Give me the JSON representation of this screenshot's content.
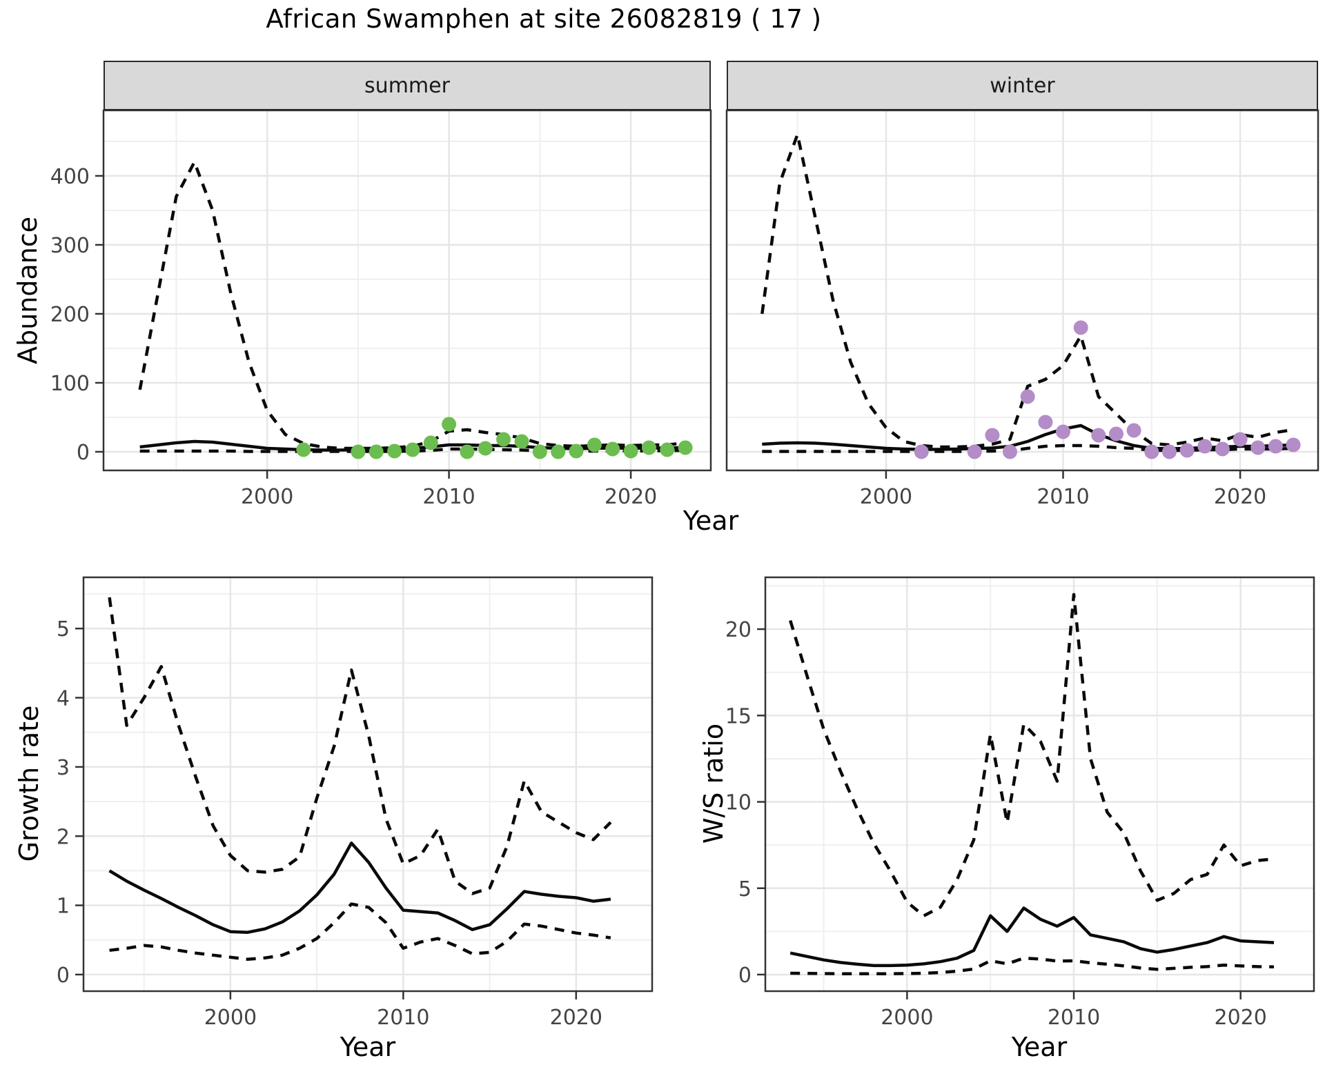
{
  "title": "African Swamphen at site 26082819 ( 17 )",
  "facets": {
    "summer": "summer",
    "winter": "winter"
  },
  "axis_titles": {
    "abundance": "Abundance",
    "year": "Year",
    "growth_rate": "Growth rate",
    "ws_ratio": "W/S ratio"
  },
  "colors": {
    "summer_points": "#6cbd4f",
    "winter_points": "#b48cc8",
    "fit_line": "#0a0a0a",
    "ci_line": "#0a0a0a",
    "strip_fill": "#d9d9d9",
    "panel_border": "#333333",
    "grid_major": "#e6e6e6",
    "grid_minor": "#efefef",
    "tick_label": "#444444"
  },
  "chart_data": [
    {
      "id": "abundance-summer",
      "type": "line",
      "facet": "summer",
      "xlabel": "Year",
      "ylabel": "Abundance",
      "xticks": [
        2000,
        2010,
        2020
      ],
      "yticks": [
        0,
        100,
        200,
        300,
        400
      ],
      "xlim": [
        1991.0,
        2024.4
      ],
      "ylim": [
        -27,
        495
      ],
      "x": [
        1993,
        1994,
        1995,
        1996,
        1997,
        1998,
        1999,
        2000,
        2001,
        2002,
        2003,
        2004,
        2005,
        2006,
        2007,
        2008,
        2009,
        2010,
        2011,
        2012,
        2013,
        2014,
        2015,
        2016,
        2017,
        2018,
        2019,
        2020,
        2021,
        2022,
        2023
      ],
      "series": [
        {
          "name": "fit",
          "style": "solid",
          "values": [
            7,
            10,
            13,
            15,
            14,
            11,
            8,
            5,
            4,
            3,
            2.5,
            2.5,
            3,
            3,
            3.5,
            5,
            7,
            10,
            10,
            9,
            9,
            8,
            6,
            5,
            4.5,
            5,
            5.5,
            5,
            5.5,
            5.5,
            6
          ]
        },
        {
          "name": "upper_ci",
          "style": "dashed",
          "values": [
            90,
            230,
            370,
            420,
            350,
            230,
            130,
            60,
            25,
            12,
            7,
            5,
            5,
            5,
            6,
            8,
            15,
            30,
            32,
            28,
            25,
            20,
            12,
            9,
            8,
            9,
            10,
            9,
            10,
            10,
            13
          ]
        },
        {
          "name": "lower_ci",
          "style": "dashed",
          "values": [
            1,
            1,
            1,
            1,
            1,
            1,
            0.5,
            0.5,
            0.5,
            0.5,
            0.5,
            0.5,
            0.5,
            0.5,
            0.5,
            1,
            2,
            4,
            4,
            3.5,
            3,
            2.5,
            1.5,
            1,
            1,
            1,
            1.5,
            1,
            1.5,
            1.5,
            2
          ]
        }
      ],
      "points": {
        "name": "observed",
        "color_key": "summer_points",
        "x": [
          2002,
          2005,
          2006,
          2007,
          2008,
          2009,
          2010,
          2011,
          2012,
          2013,
          2014,
          2015,
          2016,
          2017,
          2018,
          2019,
          2020,
          2021,
          2022,
          2023
        ],
        "y": [
          3,
          0,
          0,
          1,
          3,
          13,
          40,
          0,
          5,
          18,
          15,
          0,
          0,
          1,
          10,
          4,
          1,
          6,
          3,
          6
        ]
      }
    },
    {
      "id": "abundance-winter",
      "type": "line",
      "facet": "winter",
      "xlabel": "Year",
      "ylabel": "Abundance",
      "xticks": [
        2000,
        2010,
        2020
      ],
      "yticks": [
        0,
        100,
        200,
        300,
        400
      ],
      "xlim": [
        1991.0,
        2024.4
      ],
      "ylim": [
        -27,
        495
      ],
      "x": [
        1993,
        1994,
        1995,
        1996,
        1997,
        1998,
        1999,
        2000,
        2001,
        2002,
        2003,
        2004,
        2005,
        2006,
        2007,
        2008,
        2009,
        2010,
        2011,
        2012,
        2013,
        2014,
        2015,
        2016,
        2017,
        2018,
        2019,
        2020,
        2021,
        2022,
        2023
      ],
      "series": [
        {
          "name": "fit",
          "style": "solid",
          "values": [
            11,
            12.5,
            13,
            12.5,
            11,
            9,
            7,
            5,
            4,
            3.5,
            3.5,
            4,
            4.5,
            5.5,
            8,
            15,
            25,
            33,
            38,
            25,
            16,
            9,
            5,
            4.5,
            5,
            6,
            7,
            8,
            8,
            9,
            10
          ]
        },
        {
          "name": "upper_ci",
          "style": "dashed",
          "values": [
            200,
            390,
            460,
            340,
            220,
            130,
            70,
            35,
            15,
            9,
            7,
            7,
            8,
            11,
            18,
            95,
            105,
            125,
            168,
            80,
            55,
            30,
            12,
            10,
            14,
            20,
            16,
            25,
            21,
            28,
            32
          ]
        },
        {
          "name": "lower_ci",
          "style": "dashed",
          "values": [
            0.5,
            0.5,
            0.5,
            0.5,
            0.5,
            0.5,
            0.5,
            0.5,
            0.5,
            0.5,
            0.5,
            0.5,
            0.5,
            1,
            1.5,
            5,
            8,
            9,
            9,
            8,
            6,
            5,
            2,
            2,
            2,
            3,
            3,
            4,
            4,
            4,
            5
          ]
        }
      ],
      "points": {
        "name": "observed",
        "color_key": "winter_points",
        "x": [
          2002,
          2005,
          2006,
          2007,
          2008,
          2009,
          2010,
          2011,
          2012,
          2013,
          2014,
          2015,
          2016,
          2017,
          2018,
          2019,
          2020,
          2021,
          2022,
          2023
        ],
        "y": [
          0,
          0,
          24,
          0,
          80,
          43,
          29,
          180,
          24,
          26,
          31,
          0,
          0,
          2,
          8,
          4,
          18,
          6,
          8,
          10
        ]
      }
    },
    {
      "id": "growth-rate",
      "type": "line",
      "xlabel": "Year",
      "ylabel": "Growth rate",
      "xticks": [
        2000,
        2010,
        2020
      ],
      "yticks": [
        0,
        1,
        2,
        3,
        4,
        5
      ],
      "xlim": [
        1991.5,
        2024.4
      ],
      "ylim": [
        -0.24,
        5.74
      ],
      "x": [
        1993,
        1994,
        1995,
        1996,
        1997,
        1998,
        1999,
        2000,
        2001,
        2002,
        2003,
        2004,
        2005,
        2006,
        2007,
        2008,
        2009,
        2010,
        2011,
        2012,
        2013,
        2014,
        2015,
        2016,
        2017,
        2018,
        2019,
        2020,
        2021,
        2022
      ],
      "series": [
        {
          "name": "fit",
          "style": "solid",
          "values": [
            1.5,
            1.35,
            1.22,
            1.1,
            0.97,
            0.85,
            0.72,
            0.62,
            0.61,
            0.66,
            0.76,
            0.92,
            1.15,
            1.45,
            1.9,
            1.62,
            1.25,
            0.93,
            0.91,
            0.89,
            0.78,
            0.65,
            0.72,
            0.95,
            1.2,
            1.16,
            1.13,
            1.11,
            1.06,
            1.09
          ]
        },
        {
          "name": "upper_ci",
          "style": "dashed",
          "values": [
            5.45,
            3.6,
            4.0,
            4.45,
            3.6,
            2.85,
            2.15,
            1.72,
            1.5,
            1.48,
            1.52,
            1.7,
            2.55,
            3.3,
            4.4,
            3.45,
            2.25,
            1.6,
            1.72,
            2.1,
            1.35,
            1.17,
            1.25,
            1.85,
            2.8,
            2.35,
            2.2,
            2.05,
            1.95,
            2.2
          ]
        },
        {
          "name": "lower_ci",
          "style": "dashed",
          "values": [
            0.35,
            0.38,
            0.42,
            0.4,
            0.35,
            0.31,
            0.28,
            0.25,
            0.22,
            0.24,
            0.28,
            0.38,
            0.52,
            0.75,
            1.02,
            0.97,
            0.75,
            0.38,
            0.47,
            0.52,
            0.42,
            0.3,
            0.32,
            0.48,
            0.73,
            0.7,
            0.65,
            0.6,
            0.57,
            0.53
          ]
        }
      ]
    },
    {
      "id": "ws-ratio",
      "type": "line",
      "xlabel": "Year",
      "ylabel": "W/S ratio",
      "xticks": [
        2000,
        2010,
        2020
      ],
      "yticks": [
        0,
        5,
        10,
        15,
        20
      ],
      "xlim": [
        1991.5,
        2024.4
      ],
      "ylim": [
        -0.96,
        23.0
      ],
      "x": [
        1993,
        1994,
        1995,
        1996,
        1997,
        1998,
        1999,
        2000,
        2001,
        2002,
        2003,
        2004,
        2005,
        2006,
        2007,
        2008,
        2009,
        2010,
        2011,
        2012,
        2013,
        2014,
        2015,
        2016,
        2017,
        2018,
        2019,
        2020,
        2021,
        2022
      ],
      "series": [
        {
          "name": "fit",
          "style": "solid",
          "values": [
            1.25,
            1.05,
            0.85,
            0.7,
            0.6,
            0.52,
            0.52,
            0.55,
            0.62,
            0.75,
            0.95,
            1.4,
            3.4,
            2.5,
            3.85,
            3.2,
            2.8,
            3.3,
            2.3,
            2.1,
            1.9,
            1.5,
            1.3,
            1.45,
            1.65,
            1.85,
            2.2,
            1.95,
            1.9,
            1.85
          ]
        },
        {
          "name": "upper_ci",
          "style": "dashed",
          "values": [
            20.5,
            17.3,
            14.2,
            11.8,
            9.6,
            7.6,
            6.0,
            4.2,
            3.4,
            3.9,
            5.5,
            7.8,
            13.9,
            8.8,
            14.5,
            13.5,
            11.2,
            22.0,
            12.5,
            9.4,
            8.2,
            6.0,
            4.3,
            4.7,
            5.5,
            5.8,
            7.5,
            6.3,
            6.6,
            6.7
          ]
        },
        {
          "name": "lower_ci",
          "style": "dashed",
          "values": [
            0.08,
            0.07,
            0.06,
            0.05,
            0.05,
            0.05,
            0.05,
            0.06,
            0.08,
            0.12,
            0.2,
            0.32,
            0.8,
            0.62,
            0.95,
            0.9,
            0.78,
            0.8,
            0.68,
            0.6,
            0.5,
            0.38,
            0.3,
            0.36,
            0.42,
            0.46,
            0.55,
            0.5,
            0.46,
            0.45
          ]
        }
      ]
    }
  ]
}
